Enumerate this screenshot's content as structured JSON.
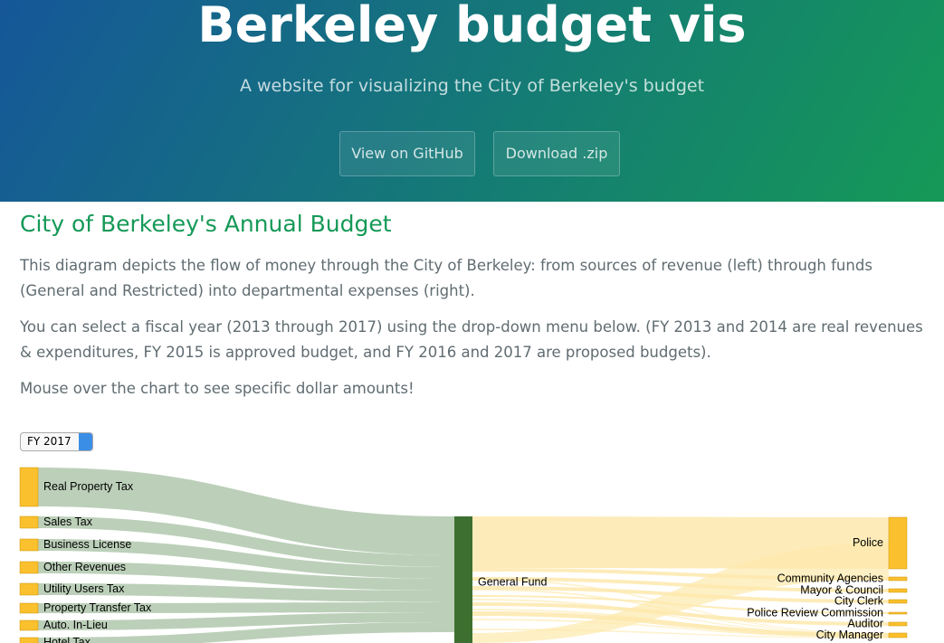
{
  "header": {
    "title": "Berkeley budget vis",
    "subtitle": "A website for visualizing the City of Berkeley's budget",
    "buttons": [
      "View on GitHub",
      "Download .zip"
    ]
  },
  "content": {
    "heading": "City of Berkeley's Annual Budget",
    "paragraphs": [
      "This diagram depicts the flow of money through the City of Berkeley: from sources of revenue (left) through funds (General and Restricted) into departmental expenses (right).",
      "You can select a fiscal year (2013 through 2017) using the drop-down menu below. (FY 2013 and 2014 are real revenues & expenditures, FY 2015 is approved budget, and FY 2016 and 2017 are proposed budgets).",
      "Mouse over the chart to see specific dollar amounts!"
    ],
    "select": "FY 2017"
  },
  "sankey": {
    "sources": [
      "Real Property Tax",
      "Sales Tax",
      "Business License",
      "Other Revenues",
      "Utility Users Tax",
      "Property Transfer Tax",
      "Auto. In-Lieu",
      "Hotel Tax"
    ],
    "fund": "General Fund",
    "expenses": [
      "Police",
      "Community Agencies",
      "Mayor & Council",
      "City Clerk",
      "Police Review Commission",
      "Auditor",
      "City Manager"
    ]
  }
}
